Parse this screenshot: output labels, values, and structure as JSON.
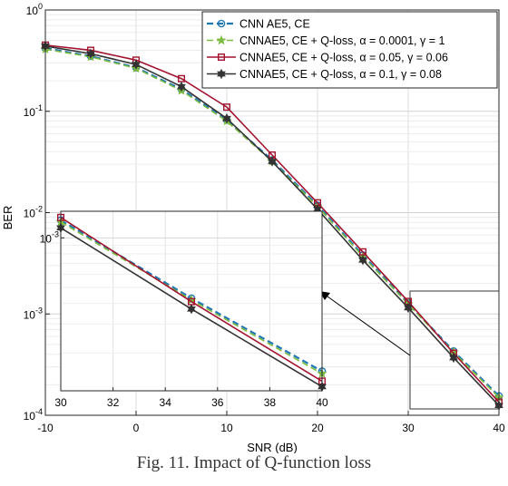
{
  "colors": {
    "cnn_ae5": "#1f77b4",
    "q_0001": "#7dbb42",
    "q_005": "#a2142f",
    "q_01": "#333333"
  },
  "chart_data": {
    "type": "line",
    "xlabel": "SNR (dB)",
    "ylabel": "BER",
    "xlim": [
      -10,
      40
    ],
    "ylim": [
      0.0001,
      1
    ],
    "yscale": "log",
    "grid": true,
    "legend_position": "top-right",
    "x_ticks": [
      "-10",
      "0",
      "10",
      "20",
      "30",
      "40"
    ],
    "y_ticks": [
      {
        "base": "10",
        "exp": "0"
      },
      {
        "base": "10",
        "exp": "-1"
      },
      {
        "base": "10",
        "exp": "-2"
      },
      {
        "base": "10",
        "exp": "-3"
      },
      {
        "base": "10",
        "exp": "-4"
      }
    ],
    "x": [
      -10,
      -5,
      0,
      5,
      10,
      15,
      20,
      25,
      30,
      35,
      40
    ],
    "series": [
      {
        "name": "CNN AE5, CE",
        "marker": "circle",
        "dashed": true,
        "values": [
          0.42,
          0.35,
          0.27,
          0.165,
          0.082,
          0.033,
          0.0118,
          0.0038,
          0.00128,
          0.00043,
          0.000155
        ]
      },
      {
        "name": "CNNAE5, CE + Q-loss, α = 0.0001, γ = 1",
        "marker": "star",
        "dashed": true,
        "values": [
          0.41,
          0.345,
          0.265,
          0.16,
          0.08,
          0.032,
          0.0115,
          0.0037,
          0.00125,
          0.00042,
          0.00015
        ]
      },
      {
        "name": "CNNAE5, CE + Q-loss, α = 0.05, γ = 0.06",
        "marker": "square",
        "dashed": false,
        "values": [
          0.45,
          0.4,
          0.32,
          0.21,
          0.11,
          0.037,
          0.0125,
          0.0041,
          0.00133,
          0.00041,
          0.000135
        ]
      },
      {
        "name": "CNNAE5, CE + Q-loss, α = 0.1, γ = 0.08",
        "marker": "hexagram",
        "dashed": false,
        "values": [
          0.44,
          0.37,
          0.29,
          0.175,
          0.085,
          0.032,
          0.0108,
          0.0034,
          0.00115,
          0.00037,
          0.000125
        ]
      }
    ],
    "inset": {
      "xlim": [
        30,
        40
      ],
      "x_ticks": [
        "30",
        "32",
        "34",
        "36",
        "38",
        "40"
      ],
      "y_tick": {
        "base": "10",
        "exp": "-3"
      }
    }
  },
  "caption": "Fig. 11. Impact of Q-function loss"
}
